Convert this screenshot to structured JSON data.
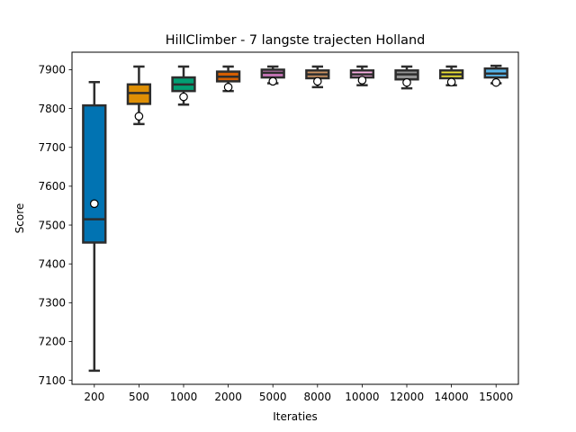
{
  "chart_data": {
    "type": "box",
    "title": "HillClimber - 7 langste trajecten Holland",
    "xlabel": "Iteraties",
    "ylabel": "Score",
    "ylim": [
      7090,
      7945
    ],
    "yticks": [
      7100,
      7200,
      7300,
      7400,
      7500,
      7600,
      7700,
      7800,
      7900
    ],
    "grid": false,
    "categories": [
      "200",
      "500",
      "1000",
      "2000",
      "5000",
      "8000",
      "10000",
      "12000",
      "14000",
      "15000"
    ],
    "boxes": [
      {
        "whisker_low": 7125,
        "q1": 7455,
        "median": 7515,
        "q3": 7808,
        "whisker_high": 7868,
        "mean": 7555,
        "color": "#0173b2"
      },
      {
        "whisker_low": 7760,
        "q1": 7812,
        "median": 7840,
        "q3": 7862,
        "whisker_high": 7908,
        "mean": 7780,
        "color": "#de8f05"
      },
      {
        "whisker_low": 7810,
        "q1": 7845,
        "median": 7862,
        "q3": 7880,
        "whisker_high": 7908,
        "mean": 7830,
        "color": "#029e73"
      },
      {
        "whisker_low": 7845,
        "q1": 7870,
        "median": 7882,
        "q3": 7895,
        "whisker_high": 7908,
        "mean": 7855,
        "color": "#d55e00"
      },
      {
        "whisker_low": 7865,
        "q1": 7880,
        "median": 7892,
        "q3": 7900,
        "whisker_high": 7908,
        "mean": 7870,
        "color": "#cc78bc"
      },
      {
        "whisker_low": 7855,
        "q1": 7878,
        "median": 7888,
        "q3": 7898,
        "whisker_high": 7908,
        "mean": 7870,
        "color": "#ca9161"
      },
      {
        "whisker_low": 7860,
        "q1": 7880,
        "median": 7888,
        "q3": 7898,
        "whisker_high": 7908,
        "mean": 7873,
        "color": "#fbafe4"
      },
      {
        "whisker_low": 7852,
        "q1": 7875,
        "median": 7888,
        "q3": 7898,
        "whisker_high": 7908,
        "mean": 7867,
        "color": "#949494"
      },
      {
        "whisker_low": 7860,
        "q1": 7878,
        "median": 7888,
        "q3": 7898,
        "whisker_high": 7908,
        "mean": 7868,
        "color": "#ece133"
      },
      {
        "whisker_low": 7865,
        "q1": 7880,
        "median": 7890,
        "q3": 7903,
        "whisker_high": 7910,
        "mean": 7867,
        "color": "#56b4e9"
      }
    ]
  }
}
